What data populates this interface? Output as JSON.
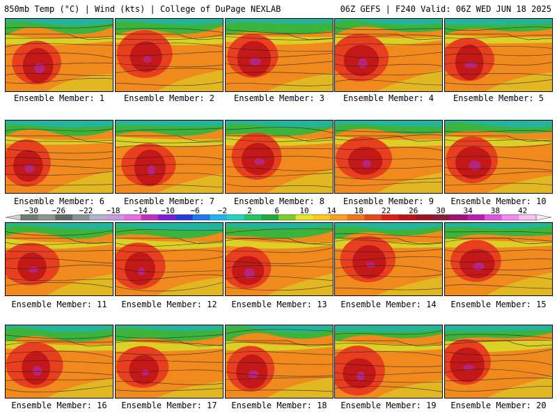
{
  "header": {
    "left": "850mb Temp (°C) | Wind (kts) | College of DuPage NEXLAB",
    "right": "06Z GEFS | F240 Valid: 06Z WED JUN 18 2025"
  },
  "panels": [
    {
      "label": "Ensemble Member: 1"
    },
    {
      "label": "Ensemble Member: 2"
    },
    {
      "label": "Ensemble Member: 3"
    },
    {
      "label": "Ensemble Member: 4"
    },
    {
      "label": "Ensemble Member: 5"
    },
    {
      "label": "Ensemble Member: 6"
    },
    {
      "label": "Ensemble Member: 7"
    },
    {
      "label": "Ensemble Member: 8"
    },
    {
      "label": "Ensemble Member: 9"
    },
    {
      "label": "Ensemble Member: 10"
    },
    {
      "label": "Ensemble Member: 11"
    },
    {
      "label": "Ensemble Member: 12"
    },
    {
      "label": "Ensemble Member: 13"
    },
    {
      "label": "Ensemble Member: 14"
    },
    {
      "label": "Ensemble Member: 15"
    },
    {
      "label": "Ensemble Member: 16"
    },
    {
      "label": "Ensemble Member: 17"
    },
    {
      "label": "Ensemble Member: 18"
    },
    {
      "label": "Ensemble Member: 19"
    },
    {
      "label": "Ensemble Member: 20"
    }
  ],
  "colorbar": {
    "labels": [
      "-30",
      "-26",
      "-22",
      "-18",
      "-14",
      "-10",
      "-6",
      "-2",
      "2",
      "6",
      "10",
      "14",
      "18",
      "22",
      "26",
      "30",
      "34",
      "38",
      "42"
    ],
    "colors": [
      "#6e7d6e",
      "#8a978a",
      "#5f6b66",
      "#8e9194",
      "#b2b2cc",
      "#c89ae0",
      "#e66ce6",
      "#c030c0",
      "#7a1fd0",
      "#2a3bd6",
      "#1e78f0",
      "#1fb4f0",
      "#22d2c2",
      "#1ec864",
      "#1eaa3c",
      "#7ccc2a",
      "#e6e628",
      "#fac81e",
      "#f8a01e",
      "#f07818",
      "#e64a14",
      "#dc1e14",
      "#be1418",
      "#9c1426",
      "#8c1c3c",
      "#a0147a",
      "#c01ab4",
      "#e052e0",
      "#f08cf0",
      "#f4c2f4"
    ]
  },
  "palette": {
    "cool": "#19b4c8",
    "green": "#3cb43c",
    "yellow": "#d6dc28",
    "orange": "#f08a1c",
    "red": "#e8401e",
    "darkred": "#c41818",
    "magenta": "#b42896"
  }
}
